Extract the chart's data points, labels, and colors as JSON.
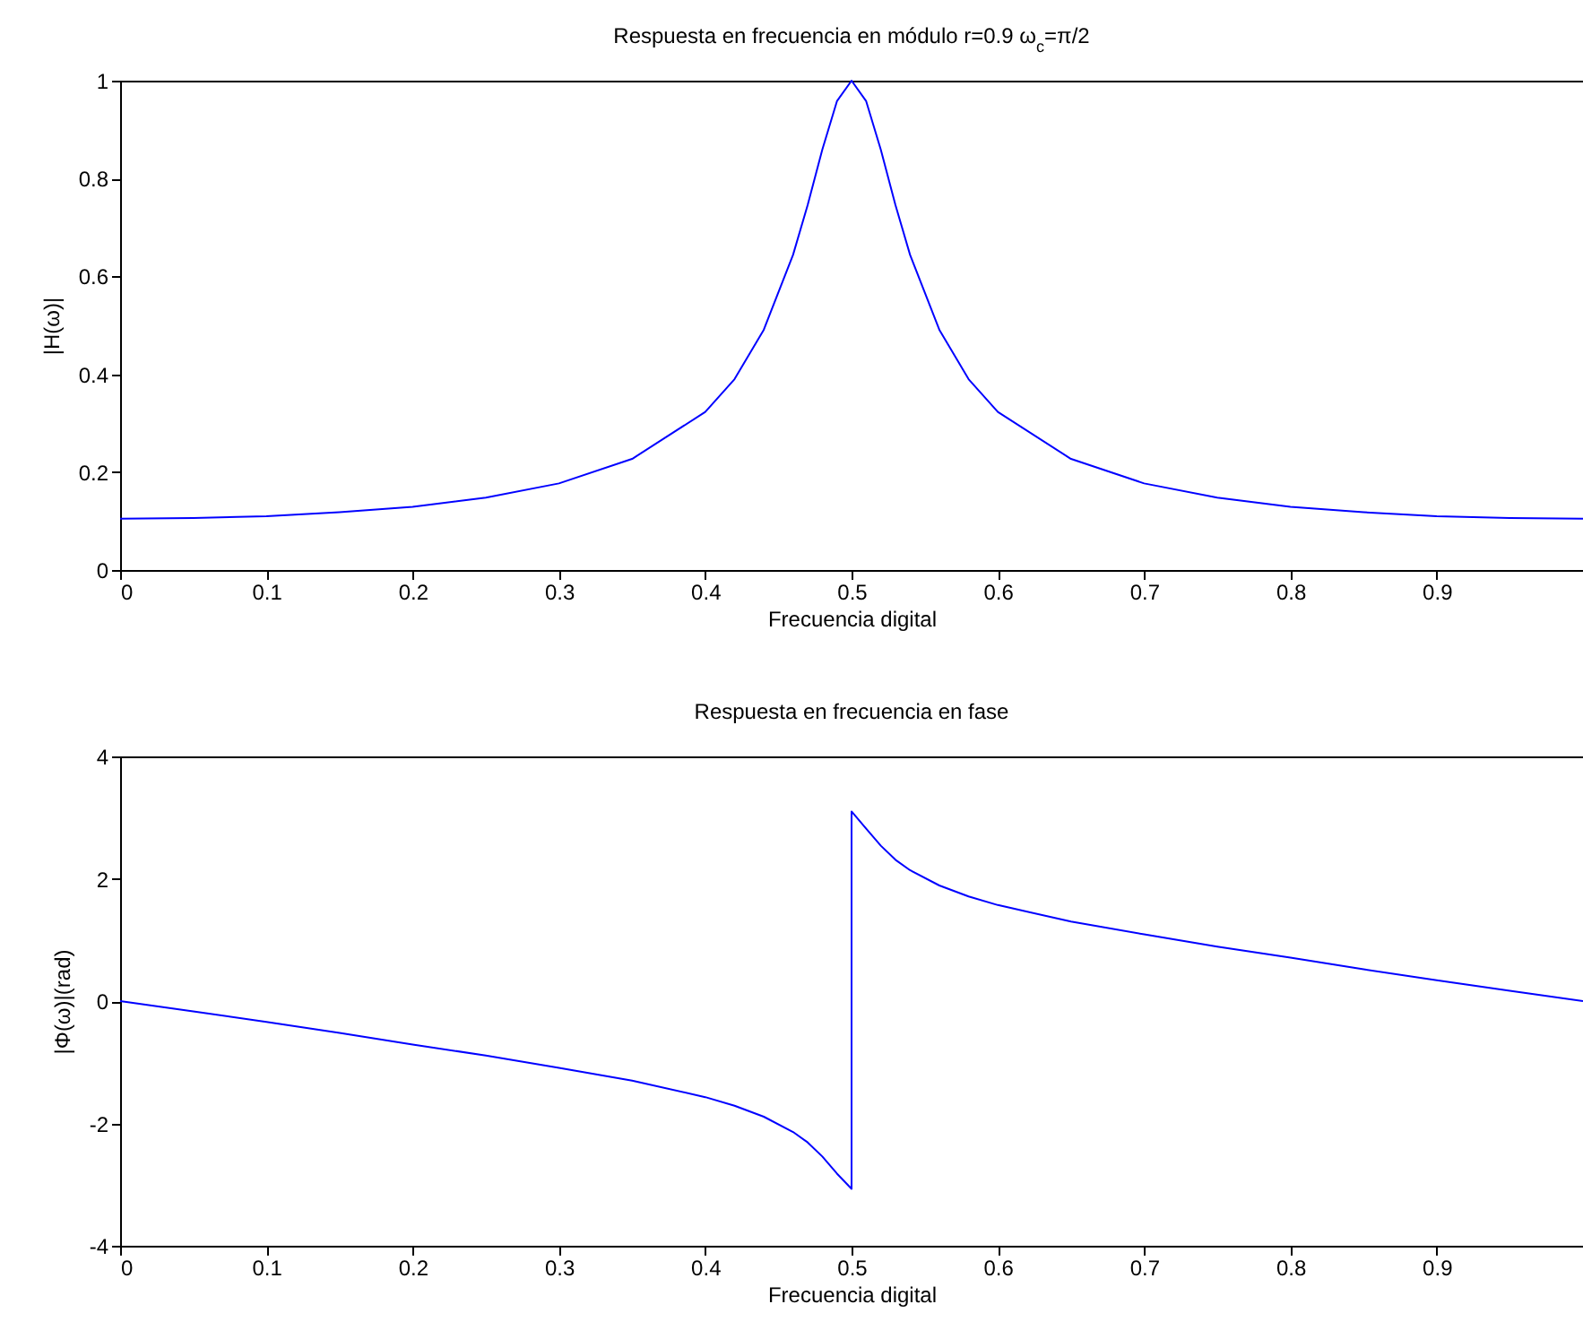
{
  "chart_data": [
    {
      "type": "line",
      "title": "Respuesta en frecuencia en módulo r=0.9 ω$_{c}$=π/2",
      "xlabel": "Frecuencia digital",
      "ylabel": "|H(ω)|",
      "xlim": [
        0,
        1
      ],
      "xticks": [
        0,
        0.1,
        0.2,
        0.3,
        0.4,
        0.5,
        0.6,
        0.7,
        0.8,
        0.9
      ],
      "ylim": [
        0,
        1
      ],
      "yticks": [
        0,
        0.2,
        0.4,
        0.6,
        0.8,
        1
      ],
      "grid": false,
      "x": [
        0,
        0.05,
        0.1,
        0.15,
        0.2,
        0.25,
        0.3,
        0.35,
        0.4,
        0.42,
        0.44,
        0.46,
        0.47,
        0.48,
        0.49,
        0.5,
        0.51,
        0.52,
        0.53,
        0.54,
        0.56,
        0.58,
        0.6,
        0.65,
        0.7,
        0.75,
        0.8,
        0.85,
        0.9,
        0.95,
        1
      ],
      "series": [
        {
          "color": "#0000ff",
          "values": [
            0.105,
            0.106,
            0.11,
            0.118,
            0.129,
            0.148,
            0.177,
            0.227,
            0.323,
            0.39,
            0.491,
            0.644,
            0.746,
            0.859,
            0.958,
            1.0,
            0.958,
            0.859,
            0.746,
            0.644,
            0.491,
            0.39,
            0.323,
            0.227,
            0.177,
            0.148,
            0.129,
            0.118,
            0.11,
            0.106,
            0.105
          ]
        }
      ]
    },
    {
      "type": "line",
      "title": "Respuesta en frecuencia en fase",
      "xlabel": "Frecuencia digital",
      "ylabel": "|Φ(ω)|(rad)",
      "xlim": [
        0,
        1
      ],
      "xticks": [
        0,
        0.1,
        0.2,
        0.3,
        0.4,
        0.5,
        0.6,
        0.7,
        0.8,
        0.9
      ],
      "ylim": [
        -4,
        4
      ],
      "yticks": [
        -4,
        -2,
        0,
        2,
        4
      ],
      "grid": false,
      "x": [
        0,
        0.05,
        0.1,
        0.15,
        0.2,
        0.25,
        0.3,
        0.35,
        0.4,
        0.42,
        0.44,
        0.46,
        0.47,
        0.48,
        0.49,
        0.5,
        0.5,
        0.51,
        0.52,
        0.53,
        0.54,
        0.56,
        0.58,
        0.6,
        0.65,
        0.7,
        0.75,
        0.8,
        0.85,
        0.9,
        0.95,
        1
      ],
      "series": [
        {
          "color": "#0000ff",
          "values": [
            0,
            -0.17,
            -0.34,
            -0.52,
            -0.71,
            -0.89,
            -1.09,
            -1.3,
            -1.57,
            -1.71,
            -1.89,
            -2.14,
            -2.31,
            -2.54,
            -2.82,
            -3.07,
            3.1,
            2.82,
            2.54,
            2.31,
            2.14,
            1.89,
            1.71,
            1.57,
            1.3,
            1.09,
            0.89,
            0.71,
            0.52,
            0.34,
            0.17,
            0
          ]
        }
      ]
    }
  ]
}
